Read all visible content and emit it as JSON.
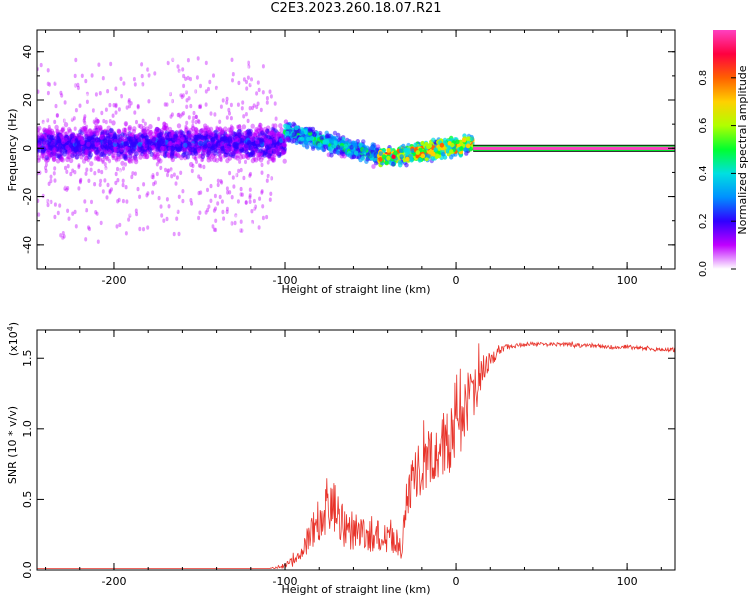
{
  "title": "C2E3.2023.260.18.07.R21",
  "chart_data": [
    {
      "type": "heatmap",
      "xlabel": "Height of straight line (km)",
      "ylabel": "Frequency (Hz)",
      "xlim": [
        -245,
        128
      ],
      "ylim": [
        -50,
        49
      ],
      "xticks": [
        -200,
        -100,
        0,
        100
      ],
      "yticks": [
        -40,
        -20,
        0,
        20,
        40
      ],
      "colorbar": {
        "label": "Normalized spectral amplitude",
        "range": [
          0,
          1
        ],
        "ticks": [
          "0.0",
          "0.2",
          "0.4",
          "0.6",
          "0.8"
        ],
        "colors": [
          "#ffffff",
          "#c000ff",
          "#3000ff",
          "#0090ff",
          "#00e0e0",
          "#00ff30",
          "#b0ff00",
          "#ffd000",
          "#ff6000",
          "#ff0040",
          "#ff40c0"
        ]
      },
      "features": [
        {
          "x_range": [
            -245,
            -105
          ],
          "description": "scattered noise",
          "amplitude": 0.1,
          "spread_hz": 49
        },
        {
          "x_range": [
            -245,
            -100
          ],
          "description": "central band",
          "center_hz": 2,
          "halfwidth_hz": 6,
          "amplitude": 0.2
        },
        {
          "x_range": [
            -100,
            -45
          ],
          "description": "descending band",
          "center_hz_start": 7,
          "center_hz_end": -3,
          "amplitude": 0.5
        },
        {
          "x_range": [
            -45,
            10
          ],
          "description": "signal",
          "center_hz_start": -4,
          "center_hz_end": 2,
          "amplitude": 0.85
        },
        {
          "x_range": [
            10,
            128
          ],
          "description": "steady tone",
          "center_hz": 0,
          "amplitude": 1.0
        }
      ]
    },
    {
      "type": "line",
      "xlabel": "Height of straight line (km)",
      "ylabel": "SNR (10 * v/v)",
      "multiplier_label": "(x10",
      "multiplier_exp": "4",
      "xlim": [
        -245,
        128
      ],
      "ylim": [
        0,
        1.7
      ],
      "xticks": [
        -200,
        -100,
        0,
        100
      ],
      "yticks": [
        "0.0",
        "0.5",
        "1.0",
        "1.5"
      ],
      "color": "#e8332a",
      "series": [
        {
          "x": [
            -245,
            -200,
            -150,
            -110,
            -100,
            -92,
            -85,
            -80,
            -75,
            -70,
            -65,
            -60,
            -55,
            -50,
            -45,
            -40,
            -35,
            -32,
            -28,
            -25,
            -20,
            -15,
            -10,
            -5,
            0,
            5,
            10,
            15,
            20,
            25,
            30,
            35,
            40,
            50,
            60,
            70,
            80,
            90,
            100,
            110,
            120,
            128
          ],
          "y": [
            0.01,
            0.01,
            0.01,
            0.01,
            0.03,
            0.08,
            0.25,
            0.38,
            0.45,
            0.43,
            0.3,
            0.28,
            0.25,
            0.26,
            0.24,
            0.22,
            0.2,
            0.18,
            0.55,
            0.62,
            0.75,
            0.8,
            0.85,
            0.92,
            1.0,
            1.12,
            1.25,
            1.4,
            1.48,
            1.55,
            1.58,
            1.59,
            1.6,
            1.6,
            1.6,
            1.59,
            1.59,
            1.58,
            1.58,
            1.57,
            1.56,
            1.56
          ],
          "noise": [
            0,
            0,
            0,
            0,
            0.02,
            0.05,
            0.12,
            0.18,
            0.22,
            0.2,
            0.15,
            0.14,
            0.13,
            0.13,
            0.12,
            0.12,
            0.1,
            0.1,
            0.18,
            0.2,
            0.22,
            0.22,
            0.22,
            0.25,
            0.28,
            0.25,
            0.2,
            0.12,
            0.06,
            0.03,
            0.02,
            0.015,
            0.015,
            0.015,
            0.015,
            0.015,
            0.015,
            0.015,
            0.015,
            0.015,
            0.015,
            0.015
          ]
        }
      ]
    }
  ]
}
